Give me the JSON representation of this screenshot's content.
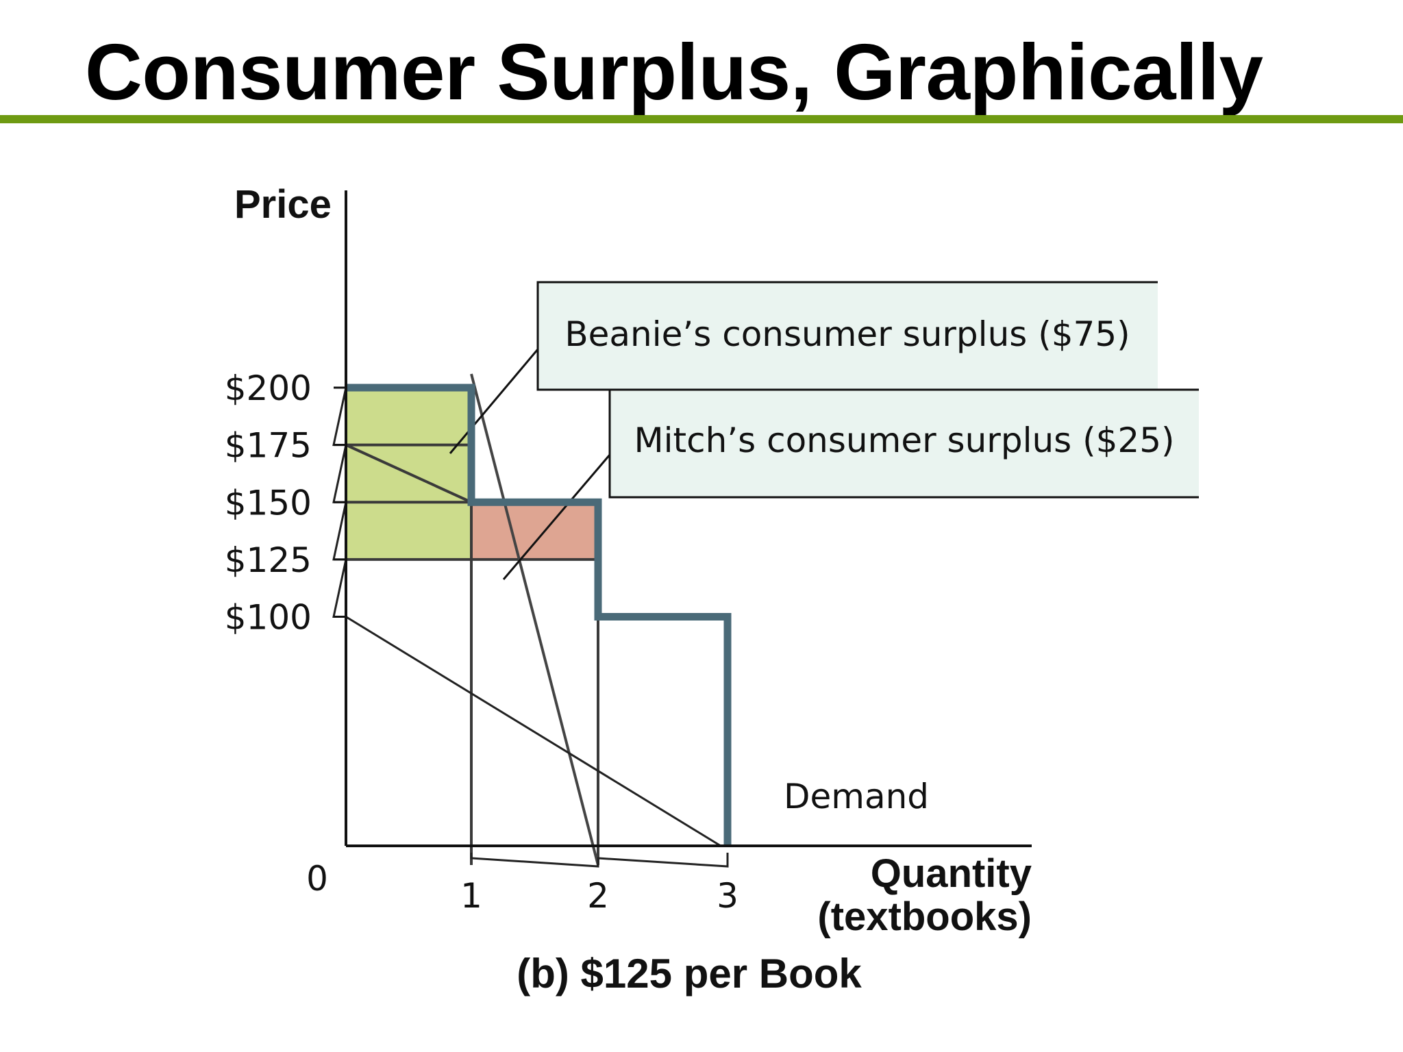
{
  "title": "Consumer Surplus, Graphically",
  "colors": {
    "title_rule": "#6e9a12",
    "demand_curve": "#4a6a78",
    "beanie_fill": "#ccdc8c",
    "mitch_fill": "#dea592",
    "label_box_fill": "#eaf4f0"
  },
  "chart_data": {
    "type": "area",
    "title": "",
    "caption": "(b) $125 per Book",
    "xlabel": [
      "Quantity",
      "(textbooks)"
    ],
    "ylabel": "Price",
    "xlim": [
      0,
      3
    ],
    "ylim": [
      0,
      200
    ],
    "x_ticks": [
      "0",
      "1",
      "2",
      "3"
    ],
    "y_ticks": [
      {
        "value": 200,
        "label": "$200"
      },
      {
        "value": 175,
        "label": "$175"
      },
      {
        "value": 150,
        "label": "$150"
      },
      {
        "value": 125,
        "label": "$125"
      },
      {
        "value": 100,
        "label": "$100"
      }
    ],
    "market_price": 125,
    "demand": {
      "name": "Demand",
      "steps": [
        {
          "from_q": 0,
          "to_q": 1,
          "price": 200
        },
        {
          "from_q": 1,
          "to_q": 2,
          "price": 150
        },
        {
          "from_q": 2,
          "to_q": 3,
          "price": 100
        }
      ]
    },
    "surplus_regions": [
      {
        "label": "Beanie’s consumer surplus ($75)",
        "q_from": 0,
        "q_to": 1,
        "price_low": 125,
        "price_high": 200
      },
      {
        "label": "Mitch’s consumer surplus ($25)",
        "q_from": 1,
        "q_to": 2,
        "price_low": 125,
        "price_high": 150
      }
    ]
  }
}
